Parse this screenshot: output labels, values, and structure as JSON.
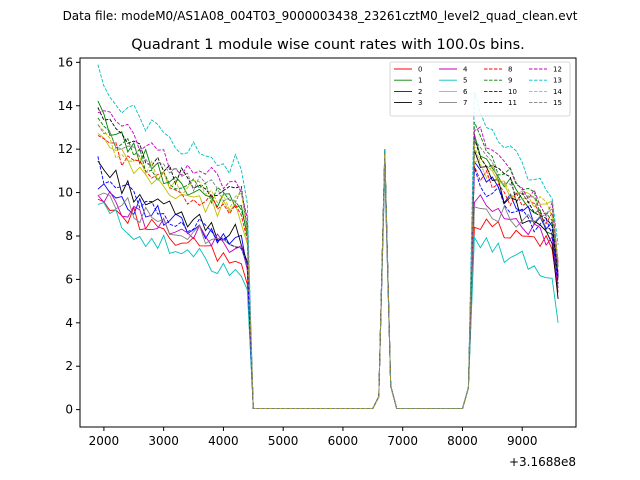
{
  "chart_data": {
    "type": "line",
    "suptitle": "Data file: modeM0/AS1A08_004T03_9000003438_23261cztM0_level2_quad_clean.evt",
    "title": "Quadrant 1 module wise count rates with 100.0s bins.",
    "xlabel": "",
    "ylabel": "",
    "x_offset_label": "+3.1688e8",
    "xlim": [
      1600,
      9900
    ],
    "ylim": [
      -0.8,
      16.2
    ],
    "x_ticks": [
      2000,
      3000,
      4000,
      5000,
      6000,
      7000,
      8000,
      9000
    ],
    "x_tick_labels": [
      "2000",
      "3000",
      "4000",
      "5000",
      "6000",
      "7000",
      "8000",
      "9000"
    ],
    "y_ticks": [
      0,
      2,
      4,
      6,
      8,
      10,
      12,
      14,
      16
    ],
    "y_tick_labels": [
      "0",
      "2",
      "4",
      "6",
      "8",
      "10",
      "12",
      "14",
      "16"
    ],
    "grid": false,
    "legend": {
      "position": "top-right",
      "columns": 4
    },
    "x_segments": [
      {
        "start": 1900,
        "end": 4300,
        "kind": "active"
      },
      {
        "points": [
          4400,
          4500,
          6500,
          6600,
          6700,
          6800,
          6900,
          8000,
          8100
        ]
      },
      {
        "start": 8200,
        "end": 9600,
        "kind": "active"
      }
    ],
    "series": [
      {
        "name": "0",
        "color": "#ff0000",
        "dash": "solid",
        "start": 10.2,
        "mid": 7.4,
        "end": 6.8,
        "peak": 8.6,
        "burst": 11.8,
        "last": 5.4
      },
      {
        "name": "1",
        "color": "#008000",
        "dash": "solid",
        "start": 13.8,
        "mid": 9.8,
        "end": 9.4,
        "peak": 12.6,
        "burst": 12.0,
        "last": 6.0
      },
      {
        "name": "2",
        "color": "#0000ff",
        "dash": "solid",
        "start": 10.6,
        "mid": 8.4,
        "end": 7.6,
        "peak": 11.4,
        "burst": 11.5,
        "last": 6.2
      },
      {
        "name": "3",
        "color": "#000000",
        "dash": "solid",
        "start": 11.4,
        "mid": 8.6,
        "end": 8.0,
        "peak": 12.2,
        "burst": 11.8,
        "last": 5.1
      },
      {
        "name": "4",
        "color": "#bf00bf",
        "dash": "solid",
        "start": 10.0,
        "mid": 8.0,
        "end": 7.6,
        "peak": 9.8,
        "burst": 11.2,
        "last": 5.6
      },
      {
        "name": "5",
        "color": "#00bfbf",
        "dash": "solid",
        "start": 9.5,
        "mid": 6.8,
        "end": 6.5,
        "peak": 8.2,
        "burst": 11.0,
        "last": 4.0
      },
      {
        "name": "6",
        "color": "#bfbf00",
        "dash": "solid",
        "start": 12.6,
        "mid": 9.4,
        "end": 9.0,
        "peak": 11.8,
        "burst": 11.6,
        "last": 6.8
      },
      {
        "name": "7",
        "color": "#808080",
        "dash": "solid",
        "start": 10.2,
        "mid": 8.0,
        "end": 7.8,
        "peak": 9.6,
        "burst": 11.4,
        "last": 6.0
      },
      {
        "name": "8",
        "color": "#ff0000",
        "dash": "dashed",
        "start": 12.8,
        "mid": 9.6,
        "end": 9.2,
        "peak": 11.4,
        "burst": 11.8,
        "last": 6.3
      },
      {
        "name": "9",
        "color": "#008000",
        "dash": "dashed",
        "start": 13.4,
        "mid": 9.8,
        "end": 9.6,
        "peak": 13.0,
        "burst": 11.9,
        "last": 6.6
      },
      {
        "name": "10",
        "color": "#0000ff",
        "dash": "dashed",
        "start": 11.2,
        "mid": 8.2,
        "end": 7.9,
        "peak": 11.0,
        "burst": 11.7,
        "last": 5.8
      },
      {
        "name": "11",
        "color": "#000000",
        "dash": "dashed",
        "start": 13.6,
        "mid": 10.2,
        "end": 9.8,
        "peak": 12.8,
        "burst": 11.9,
        "last": 6.1
      },
      {
        "name": "12",
        "color": "#bf00bf",
        "dash": "dashed",
        "start": 14.0,
        "mid": 10.8,
        "end": 10.4,
        "peak": 13.2,
        "burst": 12.0,
        "last": 6.7
      },
      {
        "name": "13",
        "color": "#00bfbf",
        "dash": "dashed",
        "start": 15.4,
        "mid": 11.6,
        "end": 11.2,
        "peak": 14.3,
        "burst": 12.0,
        "last": 7.6
      },
      {
        "name": "14",
        "color": "#bfbf00",
        "dash": "dashed",
        "start": 12.8,
        "mid": 9.8,
        "end": 9.6,
        "peak": 11.8,
        "burst": 11.8,
        "last": 6.9
      },
      {
        "name": "15",
        "color": "#808080",
        "dash": "dashed",
        "start": 13.2,
        "mid": 10.0,
        "end": 9.8,
        "peak": 12.6,
        "burst": 11.6,
        "last": 6.5
      }
    ]
  }
}
